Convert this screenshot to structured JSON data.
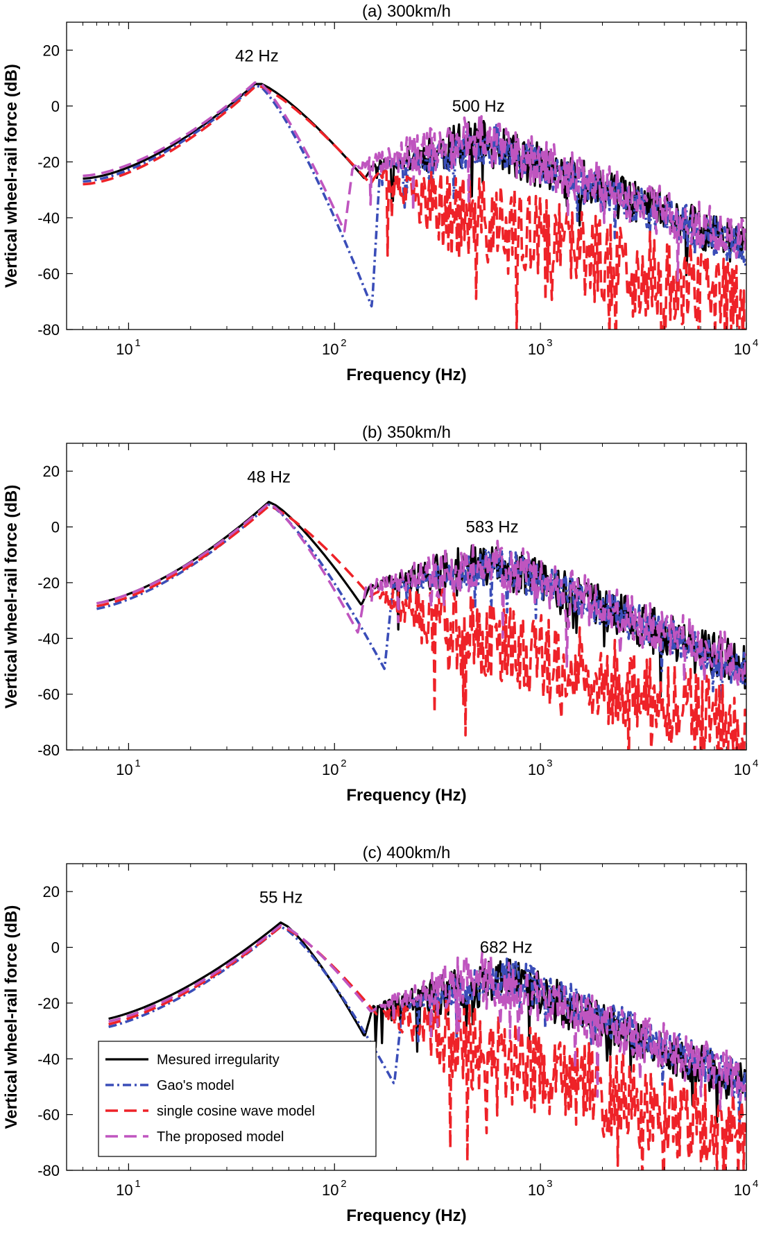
{
  "chart_data": [
    {
      "type": "line",
      "title": "(a) 300km/h",
      "xlabel": "Frequency (Hz)",
      "ylabel": "Vertical wheel-rail force (dB)",
      "xscale": "log",
      "xlim": [
        5,
        10000
      ],
      "ylim": [
        -80,
        30
      ],
      "yticks": [
        "20",
        "0",
        "-20",
        "-40",
        "-60",
        "-80"
      ],
      "annotations": [
        {
          "text": "42 Hz",
          "x": 42,
          "y": 16
        },
        {
          "text": "500 Hz",
          "x": 500,
          "y": -2
        }
      ],
      "series": [
        {
          "name": "Mesured irregularity",
          "color": "#000000",
          "peak": 42,
          "amp": 8.5,
          "a0": -26,
          "dipF": 140,
          "dipD": -26,
          "hiPeak": 500,
          "hiAmp": -11,
          "noise": 8,
          "seed": 11
        },
        {
          "name": "Gao's model",
          "color": "#3a4db8",
          "peak": 42,
          "amp": 8,
          "a0": -27,
          "dipF": 152,
          "dipD": -72,
          "hiPeak": 600,
          "hiAmp": -12,
          "noise": 7,
          "seed": 23
        },
        {
          "name": "single cosine wave model",
          "color": "#ee2228",
          "peak": 42,
          "amp": 7.5,
          "a0": -28,
          "dipF": 150,
          "dipD": -28,
          "hiPeak": 220,
          "hiAmp": -30,
          "noise": 16,
          "seed": 37
        },
        {
          "name": "The proposed model",
          "color": "#bf55bf",
          "peak": 42,
          "amp": 9,
          "a0": -25,
          "dipF": 112,
          "dipD": -45,
          "hiPeak": 500,
          "hiAmp": -10,
          "noise": 9,
          "seed": 49
        }
      ]
    },
    {
      "type": "line",
      "title": "(b) 350km/h",
      "xlabel": "Frequency (Hz)",
      "ylabel": "Vertical wheel-rail force (dB)",
      "xscale": "log",
      "xlim": [
        5,
        10000
      ],
      "ylim": [
        -80,
        30
      ],
      "yticks": [
        "20",
        "0",
        "-20",
        "-40",
        "-60",
        "-80"
      ],
      "annotations": [
        {
          "text": "48 Hz",
          "x": 48,
          "y": 16
        },
        {
          "text": "583 Hz",
          "x": 583,
          "y": -2
        }
      ],
      "series": [
        {
          "name": "Mesured irregularity",
          "color": "#000000",
          "peak": 48,
          "amp": 9,
          "a0": -28,
          "dipF": 135,
          "dipD": -28,
          "hiPeak": 583,
          "hiAmp": -11,
          "noise": 8,
          "seed": 61
        },
        {
          "name": "Gao's model",
          "color": "#3a4db8",
          "peak": 48,
          "amp": 8,
          "a0": -30,
          "dipF": 175,
          "dipD": -51,
          "hiPeak": 640,
          "hiAmp": -12,
          "noise": 7,
          "seed": 73
        },
        {
          "name": "single cosine wave model",
          "color": "#ee2228",
          "peak": 48,
          "amp": 7.5,
          "a0": -29,
          "dipF": 150,
          "dipD": -25,
          "hiPeak": 260,
          "hiAmp": -30,
          "noise": 16,
          "seed": 87
        },
        {
          "name": "The proposed model",
          "color": "#bf55bf",
          "peak": 48,
          "amp": 8.5,
          "a0": -28,
          "dipF": 130,
          "dipD": -38,
          "hiPeak": 583,
          "hiAmp": -10,
          "noise": 9,
          "seed": 99
        }
      ]
    },
    {
      "type": "line",
      "title": "(c) 400km/h",
      "xlabel": "Frequency (Hz)",
      "ylabel": "Vertical wheel-rail force (dB)",
      "xscale": "log",
      "xlim": [
        5,
        10000
      ],
      "ylim": [
        -80,
        30
      ],
      "yticks": [
        "20",
        "0",
        "-20",
        "-40",
        "-60",
        "-80"
      ],
      "annotations": [
        {
          "text": "55 Hz",
          "x": 55,
          "y": 16
        },
        {
          "text": "682 Hz",
          "x": 682,
          "y": -2
        }
      ],
      "legend": {
        "placement": "lower-left"
      },
      "series": [
        {
          "name": "Mesured irregularity",
          "color": "#000000",
          "peak": 55,
          "amp": 9,
          "a0": -27,
          "dipF": 140,
          "dipD": -32,
          "hiPeak": 682,
          "hiAmp": -10,
          "noise": 8,
          "seed": 111
        },
        {
          "name": "Gao's model",
          "color": "#3a4db8",
          "peak": 55,
          "amp": 7.5,
          "a0": -30,
          "dipF": 195,
          "dipD": -49,
          "hiPeak": 720,
          "hiAmp": -9,
          "noise": 7,
          "seed": 123
        },
        {
          "name": "single cosine wave model",
          "color": "#ee2228",
          "peak": 55,
          "amp": 7.5,
          "a0": -29,
          "dipF": 160,
          "dipD": -24,
          "hiPeak": 300,
          "hiAmp": -28,
          "noise": 16,
          "seed": 137
        },
        {
          "name": "The proposed model",
          "color": "#bf55bf",
          "peak": 55,
          "amp": 8,
          "a0": -28,
          "dipF": 150,
          "dipD": -23,
          "hiPeak": 500,
          "hiAmp": -8,
          "noise": 9,
          "seed": 149
        }
      ]
    }
  ]
}
